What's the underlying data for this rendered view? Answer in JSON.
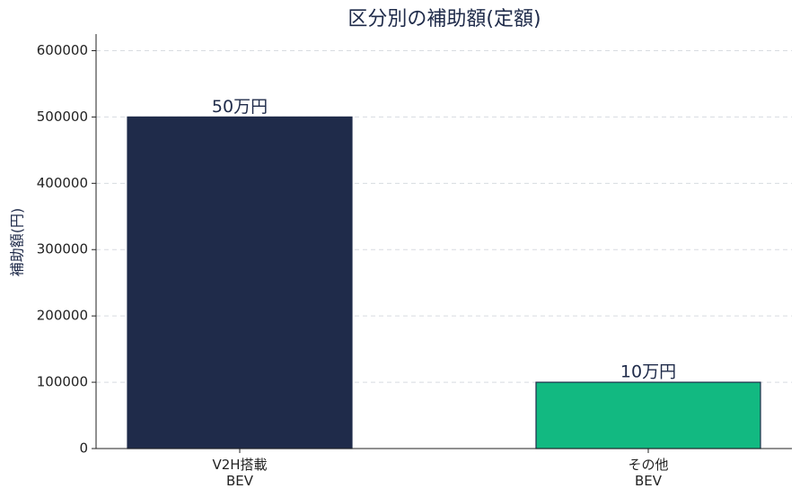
{
  "chart_data": {
    "type": "bar",
    "title": "区分別の補助額(定額)",
    "y_label": "補助額(円)",
    "categories": [
      "V2H搭載\nBEV",
      "その他\nBEV"
    ],
    "values": [
      500000,
      100000
    ],
    "value_labels": [
      "50万円",
      "10万円"
    ],
    "colors": [
      "#1f2b4a",
      "#12b981"
    ],
    "ylim": [
      0,
      625000
    ],
    "yticks": [
      0,
      100000,
      200000,
      300000,
      400000,
      500000,
      600000
    ],
    "grid": true
  }
}
